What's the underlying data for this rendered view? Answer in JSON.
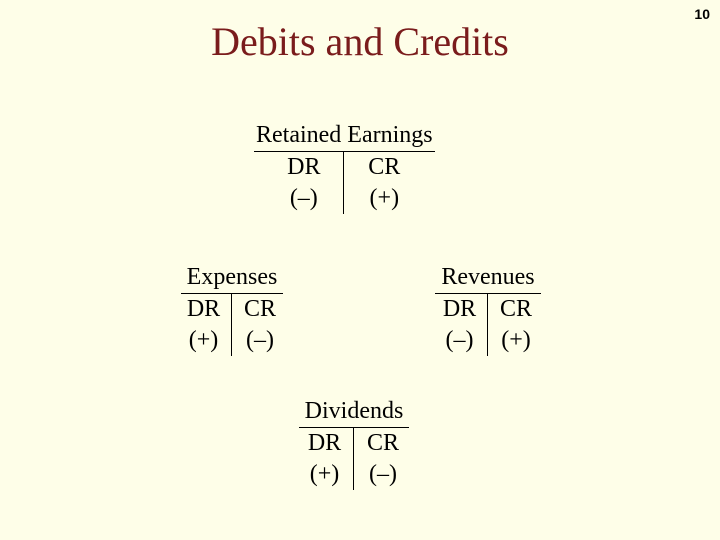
{
  "page_number": "10",
  "title": "Debits and Credits",
  "colors": {
    "background": "#fefee8",
    "title_color": "#7a1c1c",
    "text_color": "#000000",
    "rule_color": "#000000"
  },
  "typography": {
    "title_fontsize": 40,
    "body_fontsize": 24,
    "page_number_fontsize": 14,
    "title_font": "serif",
    "body_font": "serif"
  },
  "accounts": {
    "retained": {
      "name": "Retained Earnings",
      "dr_label": "DR",
      "cr_label": "CR",
      "dr_sign": "(–)",
      "cr_sign": "(+)"
    },
    "expenses": {
      "name": "Expenses",
      "dr_label": "DR",
      "cr_label": "CR",
      "dr_sign": "(+)",
      "cr_sign": "(–)"
    },
    "revenues": {
      "name": "Revenues",
      "dr_label": "DR",
      "cr_label": "CR",
      "dr_sign": "(–)",
      "cr_sign": "(+)"
    },
    "dividends": {
      "name": "Dividends",
      "dr_label": "DR",
      "cr_label": "CR",
      "dr_sign": "(+)",
      "cr_sign": "(–)"
    }
  }
}
